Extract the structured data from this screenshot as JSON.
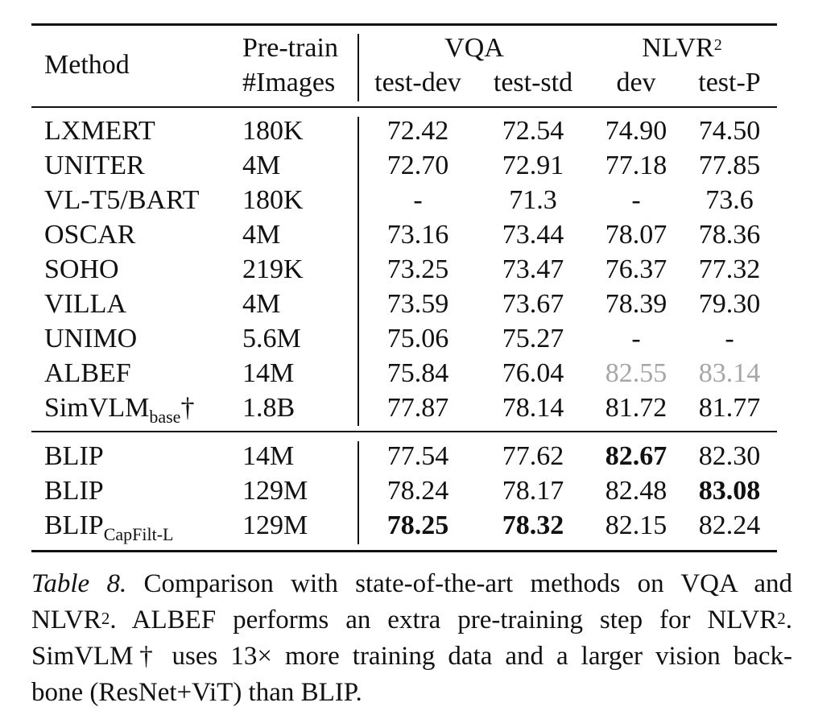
{
  "table": {
    "header": {
      "method": "Method",
      "pretrain_line1": "Pre-train",
      "pretrain_line2": "#Images",
      "vqa": "VQA",
      "nlvr_base": "NLVR",
      "nlvr_sup": "2",
      "test_dev": "test-dev",
      "test_std": "test-std",
      "dev": "dev",
      "test_p": "test-P"
    },
    "rows": [
      {
        "method": "LXMERT",
        "images": "180K",
        "test_dev": "72.42",
        "test_std": "72.54",
        "dev": "74.90",
        "test_p": "74.50"
      },
      {
        "method": "UNITER",
        "images": "4M",
        "test_dev": "72.70",
        "test_std": "72.91",
        "dev": "77.18",
        "test_p": "77.85"
      },
      {
        "method": "VL-T5/BART",
        "images": "180K",
        "test_dev": "-",
        "test_std": "71.3",
        "dev": "-",
        "test_p": "73.6"
      },
      {
        "method": "OSCAR",
        "images": "4M",
        "test_dev": "73.16",
        "test_std": "73.44",
        "dev": "78.07",
        "test_p": "78.36"
      },
      {
        "method": "SOHO",
        "images": "219K",
        "test_dev": "73.25",
        "test_std": "73.47",
        "dev": "76.37",
        "test_p": "77.32"
      },
      {
        "method": "VILLA",
        "images": "4M",
        "test_dev": "73.59",
        "test_std": "73.67",
        "dev": "78.39",
        "test_p": "79.30"
      },
      {
        "method": "UNIMO",
        "images": "5.6M",
        "test_dev": "75.06",
        "test_std": "75.27",
        "dev": "-",
        "test_p": "-"
      },
      {
        "method": "ALBEF",
        "images": "14M",
        "test_dev": "75.84",
        "test_std": "76.04",
        "dev": "82.55",
        "test_p": "83.14"
      },
      {
        "method": "SimVLM",
        "method_sub": "base",
        "method_suffix": "†",
        "images": "1.8B",
        "test_dev": "77.87",
        "test_std": "78.14",
        "dev": "81.72",
        "test_p": "81.77"
      },
      {
        "method": "BLIP",
        "images": "14M",
        "test_dev": "77.54",
        "test_std": "77.62",
        "dev": "82.67",
        "test_p": "82.30"
      },
      {
        "method": "BLIP",
        "images": "129M",
        "test_dev": "78.24",
        "test_std": "78.17",
        "dev": "82.48",
        "test_p": "83.08"
      },
      {
        "method": "BLIP",
        "method_sub": "CapFilt-L",
        "images": "129M",
        "test_dev": "78.25",
        "test_std": "78.32",
        "dev": "82.15",
        "test_p": "82.24"
      }
    ]
  },
  "caption": {
    "label": "Table 8.",
    "line1_text": "Comparison with state-of-the-art methods on VQA and",
    "line2_a": "NLVR",
    "line2_sup1": "2",
    "line2_b": ". ALBEF performs an extra pre-training step for NLVR",
    "line2_sup2": "2",
    "line2_c": ".",
    "line3": "SimVLM† uses 13× more training data and a larger vision back-",
    "line4": "bone (ResNet+ViT) than BLIP."
  },
  "colors": {
    "text": "#111111",
    "muted": "#a6a6a6"
  }
}
